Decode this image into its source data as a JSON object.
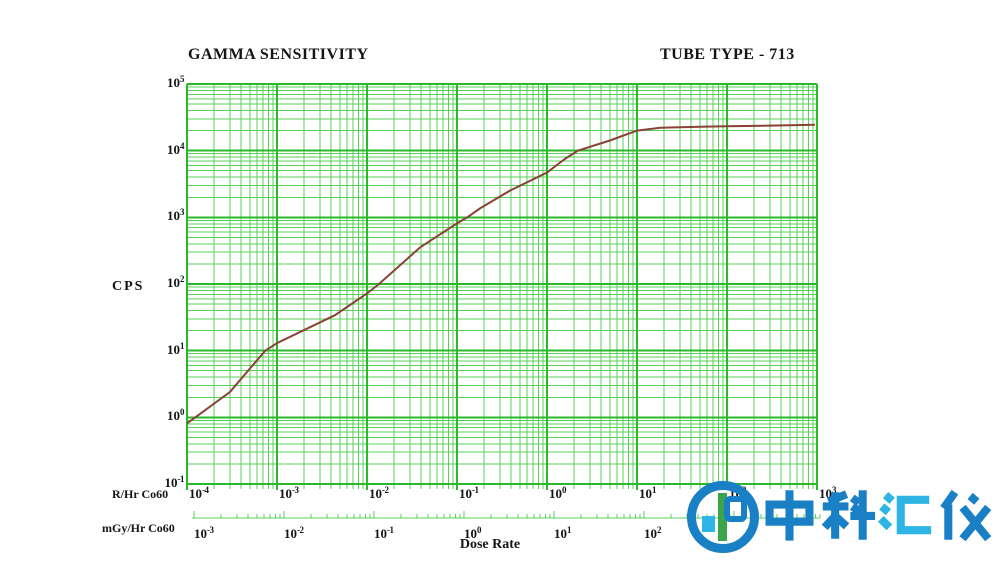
{
  "header": {
    "title": "GAMMA SENSITIVITY",
    "tube_type": "TUBE TYPE - 713"
  },
  "y_axis": {
    "label": "CPS",
    "base": "10",
    "tick_exponents": [
      5,
      4,
      3,
      2,
      1,
      0,
      -1
    ]
  },
  "x_axis_primary": {
    "unit": "R/Hr Co60",
    "base": "10",
    "tick_exponents": [
      -4,
      -3,
      -2,
      -1,
      0,
      1,
      2,
      3
    ]
  },
  "x_axis_secondary": {
    "unit": "mGy/Hr Co60",
    "base": "10",
    "tick_exponents": [
      -3,
      -2,
      -1,
      0,
      1,
      2
    ],
    "axis_title": "Dose Rate"
  },
  "colors": {
    "grid_major": "#2bb82b",
    "grid_minor": "#58d058",
    "curve": "#8a4136",
    "text": "#151515",
    "watermark_blue": "#1a80c5",
    "watermark_cyan": "#2fb5e5",
    "watermark_green": "#3aa54a"
  },
  "watermark": {
    "text": "中科汇仪",
    "chars": [
      {
        "char": "中",
        "color": "#1a80c5"
      },
      {
        "char": "科",
        "color": "#1a80c5"
      },
      {
        "char": "汇",
        "color": "#2fb5e5"
      },
      {
        "char": "仪",
        "color": "#1a80c5"
      }
    ]
  },
  "chart_data": {
    "type": "line",
    "title": "GAMMA SENSITIVITY",
    "subtitle": "TUBE TYPE - 713",
    "xlabel": "Dose Rate",
    "ylabel": "CPS",
    "x_scale": "log",
    "y_scale": "log",
    "x_unit_primary": "R/Hr Co60",
    "x_unit_secondary": "mGy/Hr Co60",
    "xlim": [
      0.0001,
      1000
    ],
    "ylim": [
      0.1,
      100000
    ],
    "grid": true,
    "legend": false,
    "series": [
      {
        "name": "gamma-sensitivity-response",
        "points": [
          [
            0.0001,
            0.81
          ],
          [
            0.0003,
            2.4
          ],
          [
            0.00074,
            10
          ],
          [
            0.001,
            13
          ],
          [
            0.0044,
            34
          ],
          [
            0.01,
            72
          ],
          [
            0.0136,
            100
          ],
          [
            0.039,
            355
          ],
          [
            0.1,
            810
          ],
          [
            0.13,
            1000
          ],
          [
            0.18,
            1360
          ],
          [
            0.39,
            2530
          ],
          [
            1.0,
            4700
          ],
          [
            1.6,
            7600
          ],
          [
            2.2,
            10000
          ],
          [
            5.0,
            14200
          ],
          [
            10,
            20000
          ],
          [
            18,
            22000
          ],
          [
            50,
            22800
          ],
          [
            100,
            23200
          ],
          [
            300,
            23800
          ],
          [
            950,
            24500
          ]
        ]
      }
    ]
  }
}
